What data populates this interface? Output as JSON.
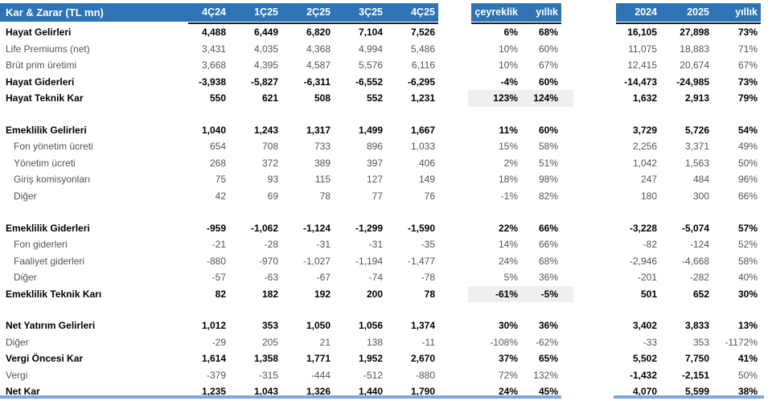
{
  "table": {
    "title": "Kar & Zarar (TL mn)",
    "columns": {
      "quarters": [
        "4Ç24",
        "1Ç25",
        "2Ç25",
        "3Ç25",
        "4Ç25"
      ],
      "qoq_label": "çeyreklik",
      "yoy_label": "yıllık",
      "year_2024": "2024",
      "year_2025": "2025",
      "annual_change_label": "yıllık"
    },
    "colors": {
      "header_bg": "#2E74B5",
      "header_text": "#FFFFFF",
      "bold_text": "#000000",
      "regular_text": "#545454",
      "highlight_bg": "#EFEFEF",
      "header_rule": "#1F1F1F",
      "bottom_rule": "#7FA7D9"
    },
    "rows": [
      {
        "label": "Hayat Gelirleri",
        "bold": true,
        "q": [
          "4,488",
          "6,449",
          "6,820",
          "7,104",
          "7,526"
        ],
        "qoq": "6%",
        "yoy": "68%",
        "a": [
          "16,105",
          "27,898",
          "73%"
        ]
      },
      {
        "label": "Life Premiums (net)",
        "q": [
          "3,431",
          "4,035",
          "4,368",
          "4,994",
          "5,486"
        ],
        "qoq": "10%",
        "yoy": "60%",
        "a": [
          "11,075",
          "18,883",
          "71%"
        ]
      },
      {
        "label": "Brüt prim üretimi",
        "q": [
          "3,668",
          "4,395",
          "4,587",
          "5,576",
          "6,116"
        ],
        "qoq": "10%",
        "yoy": "67%",
        "a": [
          "12,415",
          "20,674",
          "67%"
        ]
      },
      {
        "label": "Hayat Giderleri",
        "bold": true,
        "q": [
          "-3,938",
          "-5,827",
          "-6,311",
          "-6,552",
          "-6,295"
        ],
        "qoq": "-4%",
        "yoy": "60%",
        "a": [
          "-14,473",
          "-24,985",
          "73%"
        ]
      },
      {
        "label": "Hayat Teknik Kar",
        "bold": true,
        "highlight": true,
        "q": [
          "550",
          "621",
          "508",
          "552",
          "1,231"
        ],
        "qoq": "123%",
        "yoy": "124%",
        "a": [
          "1,632",
          "2,913",
          "79%"
        ]
      },
      {
        "type": "blank"
      },
      {
        "label": "Emeklilik Gelirleri",
        "bold": true,
        "q": [
          "1,040",
          "1,243",
          "1,317",
          "1,499",
          "1,667"
        ],
        "qoq": "11%",
        "yoy": "60%",
        "a": [
          "3,729",
          "5,726",
          "54%"
        ]
      },
      {
        "label": "Fon yönetim ücreti",
        "indent": true,
        "q": [
          "654",
          "708",
          "733",
          "896",
          "1,033"
        ],
        "qoq": "15%",
        "yoy": "58%",
        "a": [
          "2,256",
          "3,371",
          "49%"
        ]
      },
      {
        "label": "Yönetim ücreti",
        "indent": true,
        "q": [
          "268",
          "372",
          "389",
          "397",
          "406"
        ],
        "qoq": "2%",
        "yoy": "51%",
        "a": [
          "1,042",
          "1,563",
          "50%"
        ]
      },
      {
        "label": "Giriş komisyonları",
        "indent": true,
        "q": [
          "75",
          "93",
          "115",
          "127",
          "149"
        ],
        "qoq": "18%",
        "yoy": "98%",
        "a": [
          "247",
          "484",
          "96%"
        ]
      },
      {
        "label": "Diğer",
        "indent": true,
        "q": [
          "42",
          "69",
          "78",
          "77",
          "76"
        ],
        "qoq": "-1%",
        "yoy": "82%",
        "a": [
          "180",
          "300",
          "66%"
        ]
      },
      {
        "type": "blank"
      },
      {
        "label": "Emeklilik Giderleri",
        "bold": true,
        "q": [
          "-959",
          "-1,062",
          "-1,124",
          "-1,299",
          "-1,590"
        ],
        "qoq": "22%",
        "yoy": "66%",
        "a": [
          "-3,228",
          "-5,074",
          "57%"
        ]
      },
      {
        "label": "Fon giderleri",
        "indent": true,
        "q": [
          "-21",
          "-28",
          "-31",
          "-31",
          "-35"
        ],
        "qoq": "14%",
        "yoy": "66%",
        "a": [
          "-82",
          "-124",
          "52%"
        ]
      },
      {
        "label": "Faaliyet giderleri",
        "indent": true,
        "q": [
          "-880",
          "-970",
          "-1,027",
          "-1,194",
          "-1,477"
        ],
        "qoq": "24%",
        "yoy": "68%",
        "a": [
          "-2,946",
          "-4,668",
          "58%"
        ]
      },
      {
        "label": "Diğer",
        "indent": true,
        "q": [
          "-57",
          "-63",
          "-67",
          "-74",
          "-78"
        ],
        "qoq": "5%",
        "yoy": "36%",
        "a": [
          "-201",
          "-282",
          "40%"
        ]
      },
      {
        "label": "Emeklilik Teknik Karı",
        "bold": true,
        "highlight": true,
        "q": [
          "82",
          "182",
          "192",
          "200",
          "78"
        ],
        "qoq": "-61%",
        "yoy": "-5%",
        "a": [
          "501",
          "652",
          "30%"
        ]
      },
      {
        "type": "blank"
      },
      {
        "label": "Net Yatırım Gelirleri",
        "bold": true,
        "q": [
          "1,012",
          "353",
          "1,050",
          "1,056",
          "1,374"
        ],
        "qoq": "30%",
        "yoy": "36%",
        "a": [
          "3,402",
          "3,833",
          "13%"
        ]
      },
      {
        "label": "Diğer",
        "q": [
          "-29",
          "205",
          "21",
          "138",
          "-11"
        ],
        "qoq": "-108%",
        "yoy": "-62%",
        "a": [
          "-33",
          "353",
          "-1172%"
        ]
      },
      {
        "label": "Vergi Öncesi Kar",
        "bold": true,
        "q": [
          "1,614",
          "1,358",
          "1,771",
          "1,952",
          "2,670"
        ],
        "qoq": "37%",
        "yoy": "65%",
        "a": [
          "5,502",
          "7,750",
          "41%"
        ]
      },
      {
        "label": "Vergi",
        "a_bold": true,
        "q": [
          "-379",
          "-315",
          "-444",
          "-512",
          "-880"
        ],
        "qoq": "72%",
        "yoy": "132%",
        "a": [
          "-1,432",
          "-2,151",
          "50%"
        ]
      },
      {
        "label": "Net Kar",
        "bold": true,
        "q": [
          "1,235",
          "1,043",
          "1,326",
          "1,440",
          "1,790"
        ],
        "qoq": "24%",
        "yoy": "45%",
        "a": [
          "4,070",
          "5,599",
          "38%"
        ]
      }
    ]
  }
}
